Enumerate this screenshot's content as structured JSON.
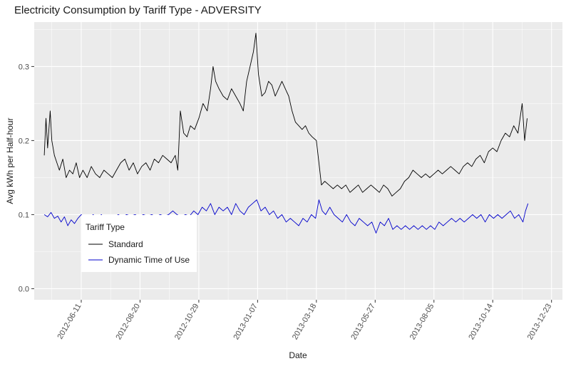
{
  "chart_data": {
    "type": "line",
    "title": "Electricity Consumption by Tariff Type - ADVERSITY",
    "xlabel": "Date",
    "ylabel": "Avg kWh per Half-hour",
    "xlim": [
      "2012-04-16",
      "2014-01-05"
    ],
    "ylim": [
      -0.015,
      0.36
    ],
    "x_ticks": [
      "2012-06-11",
      "2012-08-20",
      "2012-10-29",
      "2013-01-07",
      "2013-03-18",
      "2013-05-27",
      "2013-08-05",
      "2013-10-14",
      "2013-12-23"
    ],
    "y_ticks": [
      0.0,
      0.1,
      0.2,
      0.3
    ],
    "y_tick_labels": [
      "0.0",
      "0.1",
      "0.2",
      "0.3"
    ],
    "grid": true,
    "legend": {
      "title": "Tariff Type",
      "placement": "inside-left",
      "entries": [
        "Standard",
        "Dynamic Time of Use"
      ]
    },
    "series": [
      {
        "name": "Standard",
        "color": "#000000",
        "points": [
          [
            "2012-04-28",
            0.18
          ],
          [
            "2012-04-30",
            0.23
          ],
          [
            "2012-05-02",
            0.19
          ],
          [
            "2012-05-05",
            0.24
          ],
          [
            "2012-05-07",
            0.2
          ],
          [
            "2012-05-10",
            0.18
          ],
          [
            "2012-05-13",
            0.17
          ],
          [
            "2012-05-16",
            0.16
          ],
          [
            "2012-05-20",
            0.175
          ],
          [
            "2012-05-24",
            0.15
          ],
          [
            "2012-05-28",
            0.16
          ],
          [
            "2012-06-01",
            0.155
          ],
          [
            "2012-06-05",
            0.17
          ],
          [
            "2012-06-09",
            0.15
          ],
          [
            "2012-06-13",
            0.16
          ],
          [
            "2012-06-18",
            0.15
          ],
          [
            "2012-06-23",
            0.165
          ],
          [
            "2012-06-28",
            0.155
          ],
          [
            "2012-07-03",
            0.15
          ],
          [
            "2012-07-08",
            0.16
          ],
          [
            "2012-07-13",
            0.155
          ],
          [
            "2012-07-18",
            0.15
          ],
          [
            "2012-07-23",
            0.16
          ],
          [
            "2012-07-28",
            0.17
          ],
          [
            "2012-08-02",
            0.175
          ],
          [
            "2012-08-07",
            0.16
          ],
          [
            "2012-08-12",
            0.17
          ],
          [
            "2012-08-17",
            0.155
          ],
          [
            "2012-08-22",
            0.165
          ],
          [
            "2012-08-27",
            0.17
          ],
          [
            "2012-09-01",
            0.16
          ],
          [
            "2012-09-06",
            0.175
          ],
          [
            "2012-09-11",
            0.17
          ],
          [
            "2012-09-16",
            0.18
          ],
          [
            "2012-09-21",
            0.175
          ],
          [
            "2012-09-26",
            0.17
          ],
          [
            "2012-10-01",
            0.18
          ],
          [
            "2012-10-04",
            0.16
          ],
          [
            "2012-10-07",
            0.24
          ],
          [
            "2012-10-11",
            0.21
          ],
          [
            "2012-10-15",
            0.205
          ],
          [
            "2012-10-19",
            0.22
          ],
          [
            "2012-10-24",
            0.215
          ],
          [
            "2012-10-29",
            0.23
          ],
          [
            "2012-11-03",
            0.25
          ],
          [
            "2012-11-08",
            0.24
          ],
          [
            "2012-11-12",
            0.27
          ],
          [
            "2012-11-15",
            0.3
          ],
          [
            "2012-11-18",
            0.28
          ],
          [
            "2012-11-22",
            0.27
          ],
          [
            "2012-11-27",
            0.26
          ],
          [
            "2012-12-02",
            0.255
          ],
          [
            "2012-12-07",
            0.27
          ],
          [
            "2012-12-12",
            0.26
          ],
          [
            "2012-12-17",
            0.25
          ],
          [
            "2012-12-21",
            0.24
          ],
          [
            "2012-12-25",
            0.28
          ],
          [
            "2012-12-29",
            0.3
          ],
          [
            "2013-01-02",
            0.32
          ],
          [
            "2013-01-05",
            0.345
          ],
          [
            "2013-01-08",
            0.29
          ],
          [
            "2013-01-12",
            0.26
          ],
          [
            "2013-01-16",
            0.265
          ],
          [
            "2013-01-20",
            0.28
          ],
          [
            "2013-01-24",
            0.275
          ],
          [
            "2013-01-28",
            0.26
          ],
          [
            "2013-02-01",
            0.27
          ],
          [
            "2013-02-05",
            0.28
          ],
          [
            "2013-02-09",
            0.27
          ],
          [
            "2013-02-13",
            0.26
          ],
          [
            "2013-02-17",
            0.24
          ],
          [
            "2013-02-21",
            0.225
          ],
          [
            "2013-02-25",
            0.22
          ],
          [
            "2013-03-01",
            0.215
          ],
          [
            "2013-03-05",
            0.22
          ],
          [
            "2013-03-09",
            0.21
          ],
          [
            "2013-03-13",
            0.205
          ],
          [
            "2013-03-18",
            0.2
          ],
          [
            "2013-03-21",
            0.17
          ],
          [
            "2013-03-24",
            0.14
          ],
          [
            "2013-03-28",
            0.145
          ],
          [
            "2013-04-02",
            0.14
          ],
          [
            "2013-04-07",
            0.135
          ],
          [
            "2013-04-12",
            0.14
          ],
          [
            "2013-04-17",
            0.135
          ],
          [
            "2013-04-22",
            0.14
          ],
          [
            "2013-04-27",
            0.13
          ],
          [
            "2013-05-02",
            0.135
          ],
          [
            "2013-05-07",
            0.14
          ],
          [
            "2013-05-12",
            0.13
          ],
          [
            "2013-05-17",
            0.135
          ],
          [
            "2013-05-22",
            0.14
          ],
          [
            "2013-05-27",
            0.135
          ],
          [
            "2013-06-01",
            0.13
          ],
          [
            "2013-06-06",
            0.14
          ],
          [
            "2013-06-11",
            0.135
          ],
          [
            "2013-06-16",
            0.125
          ],
          [
            "2013-06-21",
            0.13
          ],
          [
            "2013-06-26",
            0.135
          ],
          [
            "2013-07-01",
            0.145
          ],
          [
            "2013-07-06",
            0.15
          ],
          [
            "2013-07-11",
            0.16
          ],
          [
            "2013-07-16",
            0.155
          ],
          [
            "2013-07-21",
            0.15
          ],
          [
            "2013-07-26",
            0.155
          ],
          [
            "2013-07-31",
            0.15
          ],
          [
            "2013-08-05",
            0.155
          ],
          [
            "2013-08-10",
            0.16
          ],
          [
            "2013-08-15",
            0.155
          ],
          [
            "2013-08-20",
            0.16
          ],
          [
            "2013-08-25",
            0.165
          ],
          [
            "2013-08-30",
            0.16
          ],
          [
            "2013-09-04",
            0.155
          ],
          [
            "2013-09-09",
            0.165
          ],
          [
            "2013-09-14",
            0.17
          ],
          [
            "2013-09-19",
            0.165
          ],
          [
            "2013-09-24",
            0.175
          ],
          [
            "2013-09-29",
            0.18
          ],
          [
            "2013-10-04",
            0.17
          ],
          [
            "2013-10-09",
            0.185
          ],
          [
            "2013-10-14",
            0.19
          ],
          [
            "2013-10-19",
            0.185
          ],
          [
            "2013-10-24",
            0.2
          ],
          [
            "2013-10-29",
            0.21
          ],
          [
            "2013-11-03",
            0.205
          ],
          [
            "2013-11-08",
            0.22
          ],
          [
            "2013-11-13",
            0.21
          ],
          [
            "2013-11-18",
            0.25
          ],
          [
            "2013-11-21",
            0.2
          ],
          [
            "2013-11-24",
            0.23
          ]
        ]
      },
      {
        "name": "Dynamic Time of Use",
        "color": "#0000cc",
        "points": [
          [
            "2012-04-28",
            0.1
          ],
          [
            "2012-05-02",
            0.097
          ],
          [
            "2012-05-06",
            0.103
          ],
          [
            "2012-05-10",
            0.095
          ],
          [
            "2012-05-14",
            0.098
          ],
          [
            "2012-05-18",
            0.09
          ],
          [
            "2012-05-22",
            0.097
          ],
          [
            "2012-05-26",
            0.085
          ],
          [
            "2012-05-30",
            0.093
          ],
          [
            "2012-06-03",
            0.088
          ],
          [
            "2012-06-07",
            0.095
          ],
          [
            "2012-06-11",
            0.1
          ],
          [
            "2012-06-15",
            0.095
          ],
          [
            "2012-06-20",
            0.09
          ],
          [
            "2012-06-25",
            0.1
          ],
          [
            "2012-06-30",
            0.095
          ],
          [
            "2012-07-05",
            0.1
          ],
          [
            "2012-07-10",
            0.093
          ],
          [
            "2012-07-15",
            0.098
          ],
          [
            "2012-07-20",
            0.095
          ],
          [
            "2012-07-25",
            0.1
          ],
          [
            "2012-07-30",
            0.097
          ],
          [
            "2012-08-04",
            0.1
          ],
          [
            "2012-08-09",
            0.098
          ],
          [
            "2012-08-14",
            0.1
          ],
          [
            "2012-08-19",
            0.097
          ],
          [
            "2012-08-24",
            0.1
          ],
          [
            "2012-08-29",
            0.098
          ],
          [
            "2012-09-03",
            0.1
          ],
          [
            "2012-09-08",
            0.097
          ],
          [
            "2012-09-13",
            0.1
          ],
          [
            "2012-09-18",
            0.098
          ],
          [
            "2012-09-23",
            0.1
          ],
          [
            "2012-09-28",
            0.105
          ],
          [
            "2012-10-03",
            0.1
          ],
          [
            "2012-10-08",
            0.097
          ],
          [
            "2012-10-13",
            0.1
          ],
          [
            "2012-10-18",
            0.098
          ],
          [
            "2012-10-23",
            0.105
          ],
          [
            "2012-10-28",
            0.1
          ],
          [
            "2012-11-02",
            0.11
          ],
          [
            "2012-11-07",
            0.105
          ],
          [
            "2012-11-12",
            0.115
          ],
          [
            "2012-11-17",
            0.1
          ],
          [
            "2012-11-22",
            0.11
          ],
          [
            "2012-11-27",
            0.105
          ],
          [
            "2012-12-02",
            0.11
          ],
          [
            "2012-12-07",
            0.1
          ],
          [
            "2012-12-12",
            0.115
          ],
          [
            "2012-12-17",
            0.105
          ],
          [
            "2012-12-22",
            0.1
          ],
          [
            "2012-12-27",
            0.11
          ],
          [
            "2013-01-01",
            0.115
          ],
          [
            "2013-01-06",
            0.12
          ],
          [
            "2013-01-11",
            0.105
          ],
          [
            "2013-01-16",
            0.11
          ],
          [
            "2013-01-21",
            0.1
          ],
          [
            "2013-01-26",
            0.105
          ],
          [
            "2013-01-31",
            0.095
          ],
          [
            "2013-02-05",
            0.1
          ],
          [
            "2013-02-10",
            0.09
          ],
          [
            "2013-02-15",
            0.095
          ],
          [
            "2013-02-20",
            0.09
          ],
          [
            "2013-02-25",
            0.085
          ],
          [
            "2013-03-02",
            0.095
          ],
          [
            "2013-03-07",
            0.09
          ],
          [
            "2013-03-12",
            0.1
          ],
          [
            "2013-03-17",
            0.095
          ],
          [
            "2013-03-21",
            0.12
          ],
          [
            "2013-03-25",
            0.105
          ],
          [
            "2013-03-29",
            0.1
          ],
          [
            "2013-04-03",
            0.11
          ],
          [
            "2013-04-08",
            0.1
          ],
          [
            "2013-04-13",
            0.095
          ],
          [
            "2013-04-18",
            0.09
          ],
          [
            "2013-04-23",
            0.1
          ],
          [
            "2013-04-28",
            0.09
          ],
          [
            "2013-05-03",
            0.085
          ],
          [
            "2013-05-08",
            0.095
          ],
          [
            "2013-05-13",
            0.09
          ],
          [
            "2013-05-18",
            0.085
          ],
          [
            "2013-05-23",
            0.09
          ],
          [
            "2013-05-28",
            0.075
          ],
          [
            "2013-06-02",
            0.09
          ],
          [
            "2013-06-07",
            0.085
          ],
          [
            "2013-06-12",
            0.095
          ],
          [
            "2013-06-17",
            0.08
          ],
          [
            "2013-06-22",
            0.085
          ],
          [
            "2013-06-27",
            0.08
          ],
          [
            "2013-07-02",
            0.085
          ],
          [
            "2013-07-07",
            0.08
          ],
          [
            "2013-07-12",
            0.085
          ],
          [
            "2013-07-17",
            0.08
          ],
          [
            "2013-07-22",
            0.085
          ],
          [
            "2013-07-27",
            0.08
          ],
          [
            "2013-08-01",
            0.085
          ],
          [
            "2013-08-06",
            0.08
          ],
          [
            "2013-08-11",
            0.09
          ],
          [
            "2013-08-16",
            0.085
          ],
          [
            "2013-08-21",
            0.09
          ],
          [
            "2013-08-26",
            0.095
          ],
          [
            "2013-08-31",
            0.09
          ],
          [
            "2013-09-05",
            0.095
          ],
          [
            "2013-09-10",
            0.09
          ],
          [
            "2013-09-15",
            0.095
          ],
          [
            "2013-09-20",
            0.1
          ],
          [
            "2013-09-25",
            0.095
          ],
          [
            "2013-09-30",
            0.1
          ],
          [
            "2013-10-05",
            0.09
          ],
          [
            "2013-10-10",
            0.1
          ],
          [
            "2013-10-15",
            0.095
          ],
          [
            "2013-10-20",
            0.1
          ],
          [
            "2013-10-25",
            0.095
          ],
          [
            "2013-10-30",
            0.1
          ],
          [
            "2013-11-04",
            0.105
          ],
          [
            "2013-11-09",
            0.095
          ],
          [
            "2013-11-14",
            0.1
          ],
          [
            "2013-11-19",
            0.09
          ],
          [
            "2013-11-22",
            0.105
          ],
          [
            "2013-11-25",
            0.115
          ]
        ]
      }
    ]
  }
}
